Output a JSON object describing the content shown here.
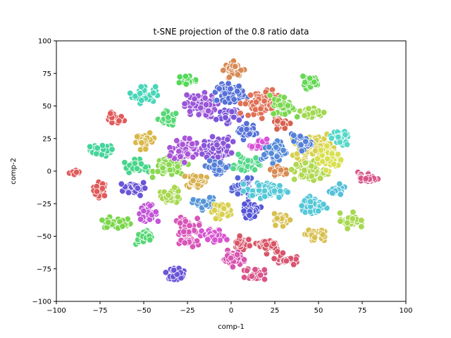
{
  "chart_data": {
    "type": "scatter",
    "title": "t-SNE projection of the 0.8 ratio data",
    "xlabel": "comp-1",
    "ylabel": "comp-2",
    "xlim": [
      -100,
      100
    ],
    "ylim": [
      -100,
      100
    ],
    "xticks": [
      "−100",
      "−75",
      "−50",
      "−25",
      "0",
      "25",
      "50",
      "75",
      "100"
    ],
    "yticks": [
      "−100",
      "−75",
      "−50",
      "−25",
      "0",
      "25",
      "50",
      "75",
      "100"
    ],
    "grid": false,
    "legend": "none",
    "marker_edge_color": "#ffffff",
    "clusters": [
      {
        "x": -88,
        "y": -1,
        "rx": 4,
        "ry": 2,
        "color": "#e05a5a",
        "n": 10
      },
      {
        "x": -75,
        "y": -14,
        "rx": 4,
        "ry": 5,
        "color": "#e05a5a",
        "n": 25
      },
      {
        "x": -74,
        "y": 16,
        "rx": 6,
        "ry": 4,
        "color": "#45d49a",
        "n": 35
      },
      {
        "x": -67,
        "y": 40,
        "rx": 5,
        "ry": 4,
        "color": "#e05a5a",
        "n": 25
      },
      {
        "x": -65,
        "y": -40,
        "rx": 7,
        "ry": 4,
        "color": "#7ad64a",
        "n": 40
      },
      {
        "x": -55,
        "y": -13,
        "rx": 6,
        "ry": 5,
        "color": "#6a55d8",
        "n": 45
      },
      {
        "x": -55,
        "y": 4,
        "rx": 6,
        "ry": 4,
        "color": "#48d68a",
        "n": 35
      },
      {
        "x": -50,
        "y": 59,
        "rx": 6,
        "ry": 6,
        "color": "#48d6b8",
        "n": 40
      },
      {
        "x": -49,
        "y": 23,
        "rx": 5,
        "ry": 5,
        "color": "#d9b84a",
        "n": 30
      },
      {
        "x": -48,
        "y": -32,
        "rx": 5,
        "ry": 5,
        "color": "#c255d8",
        "n": 35
      },
      {
        "x": -49,
        "y": -51,
        "rx": 5,
        "ry": 5,
        "color": "#55d875",
        "n": 35
      },
      {
        "x": -36,
        "y": 40,
        "rx": 5,
        "ry": 5,
        "color": "#55d875",
        "n": 35
      },
      {
        "x": -35,
        "y": 3,
        "rx": 8,
        "ry": 6,
        "color": "#8ad850",
        "n": 70
      },
      {
        "x": -34,
        "y": -19,
        "rx": 5,
        "ry": 5,
        "color": "#a8d850",
        "n": 35
      },
      {
        "x": -31,
        "y": -78,
        "rx": 5,
        "ry": 4,
        "color": "#6a55d8",
        "n": 35
      },
      {
        "x": -26,
        "y": -43,
        "rx": 6,
        "ry": 6,
        "color": "#d855b8",
        "n": 50
      },
      {
        "x": -24,
        "y": -55,
        "rx": 5,
        "ry": 3,
        "color": "#d855b8",
        "n": 30
      },
      {
        "x": -25,
        "y": 70,
        "rx": 5,
        "ry": 4,
        "color": "#55d85a",
        "n": 30
      },
      {
        "x": -26,
        "y": 17,
        "rx": 7,
        "ry": 8,
        "color": "#a855d8",
        "n": 70
      },
      {
        "x": -20,
        "y": -7,
        "rx": 5,
        "ry": 5,
        "color": "#d8b050",
        "n": 35
      },
      {
        "x": -18,
        "y": 50,
        "rx": 8,
        "ry": 8,
        "color": "#9a55d8",
        "n": 80
      },
      {
        "x": -15,
        "y": -25,
        "rx": 6,
        "ry": 4,
        "color": "#5595d8",
        "n": 40
      },
      {
        "x": -10,
        "y": -50,
        "rx": 6,
        "ry": 5,
        "color": "#d855d0",
        "n": 45
      },
      {
        "x": -8,
        "y": 18,
        "rx": 7,
        "ry": 7,
        "color": "#8a55d8",
        "n": 70
      },
      {
        "x": -7,
        "y": 3,
        "rx": 6,
        "ry": 4,
        "color": "#5580d8",
        "n": 40
      },
      {
        "x": -5,
        "y": -30,
        "rx": 5,
        "ry": 5,
        "color": "#d8d050",
        "n": 35
      },
      {
        "x": 0,
        "y": 60,
        "rx": 7,
        "ry": 6,
        "color": "#5570d8",
        "n": 60
      },
      {
        "x": 2,
        "y": 78,
        "rx": 5,
        "ry": 5,
        "color": "#d88a55",
        "n": 35
      },
      {
        "x": -2,
        "y": 43,
        "rx": 6,
        "ry": 5,
        "color": "#7a55d8",
        "n": 40
      },
      {
        "x": 1,
        "y": -67,
        "rx": 5,
        "ry": 5,
        "color": "#d855b0",
        "n": 40
      },
      {
        "x": 6,
        "y": -55,
        "rx": 5,
        "ry": 4,
        "color": "#d8556a",
        "n": 30
      },
      {
        "x": 7,
        "y": -13,
        "rx": 5,
        "ry": 6,
        "color": "#5565d8",
        "n": 40
      },
      {
        "x": 8,
        "y": 30,
        "rx": 5,
        "ry": 5,
        "color": "#5570d8",
        "n": 35
      },
      {
        "x": 9,
        "y": 5,
        "rx": 6,
        "ry": 6,
        "color": "#55d88a",
        "n": 40
      },
      {
        "x": 11,
        "y": -30,
        "rx": 5,
        "ry": 5,
        "color": "#5555d8",
        "n": 35
      },
      {
        "x": 14,
        "y": -79,
        "rx": 5,
        "ry": 4,
        "color": "#d8558a",
        "n": 35
      },
      {
        "x": 17,
        "y": 52,
        "rx": 9,
        "ry": 9,
        "color": "#e07055",
        "n": 90
      },
      {
        "x": 16,
        "y": 20,
        "rx": 4,
        "ry": 4,
        "color": "#d855d8",
        "n": 25
      },
      {
        "x": 20,
        "y": -15,
        "rx": 10,
        "ry": 5,
        "color": "#55c8d8",
        "n": 70
      },
      {
        "x": 25,
        "y": 15,
        "rx": 6,
        "ry": 7,
        "color": "#558ad8",
        "n": 55
      },
      {
        "x": 22,
        "y": -57,
        "rx": 6,
        "ry": 5,
        "color": "#d85565",
        "n": 40
      },
      {
        "x": 28,
        "y": 0,
        "rx": 5,
        "ry": 4,
        "color": "#d88a50",
        "n": 30
      },
      {
        "x": 29,
        "y": -37,
        "rx": 4,
        "ry": 4,
        "color": "#d8c050",
        "n": 25
      },
      {
        "x": 30,
        "y": 50,
        "rx": 6,
        "ry": 7,
        "color": "#7ad850",
        "n": 45
      },
      {
        "x": 29,
        "y": 37,
        "rx": 5,
        "ry": 4,
        "color": "#d86050",
        "n": 25
      },
      {
        "x": 31,
        "y": -68,
        "rx": 5,
        "ry": 4,
        "color": "#d85570",
        "n": 30
      },
      {
        "x": 45,
        "y": 68,
        "rx": 5,
        "ry": 4,
        "color": "#65d855",
        "n": 30
      },
      {
        "x": 45,
        "y": 45,
        "rx": 7,
        "ry": 4,
        "color": "#a0d850",
        "n": 35
      },
      {
        "x": 47,
        "y": 18,
        "rx": 9,
        "ry": 8,
        "color": "#d8d050",
        "n": 80
      },
      {
        "x": 45,
        "y": 0,
        "rx": 8,
        "ry": 7,
        "color": "#b0d850",
        "n": 70
      },
      {
        "x": 40,
        "y": 22,
        "rx": 5,
        "ry": 5,
        "color": "#5580d8",
        "n": 30
      },
      {
        "x": 47,
        "y": -27,
        "rx": 6,
        "ry": 6,
        "color": "#55c8d8",
        "n": 50
      },
      {
        "x": 47,
        "y": -48,
        "rx": 5,
        "ry": 4,
        "color": "#d8c050",
        "n": 30
      },
      {
        "x": 57,
        "y": 10,
        "rx": 6,
        "ry": 8,
        "color": "#d8e050",
        "n": 50
      },
      {
        "x": 61,
        "y": -15,
        "rx": 5,
        "ry": 4,
        "color": "#55c0d8",
        "n": 30
      },
      {
        "x": 62,
        "y": 25,
        "rx": 5,
        "ry": 5,
        "color": "#55d8c8",
        "n": 35
      },
      {
        "x": 68,
        "y": -38,
        "rx": 5,
        "ry": 5,
        "color": "#a8d850",
        "n": 35
      },
      {
        "x": 78,
        "y": -5,
        "rx": 5,
        "ry": 4,
        "color": "#d8558a",
        "n": 35
      }
    ]
  }
}
